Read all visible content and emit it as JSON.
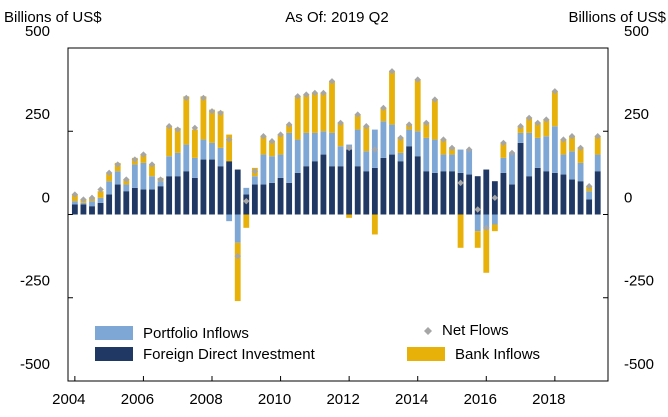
{
  "chart_data": {
    "type": "stacked-bar",
    "title": "As Of: 2019 Q2",
    "y_label": "Billions of US$",
    "y2_label": "Billions of US$",
    "x": [
      2004,
      2004.25,
      2004.5,
      2004.75,
      2005,
      2005.25,
      2005.5,
      2005.75,
      2006,
      2006.25,
      2006.5,
      2006.75,
      2007,
      2007.25,
      2007.5,
      2007.75,
      2008,
      2008.25,
      2008.5,
      2008.75,
      2009,
      2009.25,
      2009.5,
      2009.75,
      2010,
      2010.25,
      2010.5,
      2010.75,
      2011,
      2011.25,
      2011.5,
      2011.75,
      2012,
      2012.25,
      2012.5,
      2012.75,
      2013,
      2013.25,
      2013.5,
      2013.75,
      2014,
      2014.25,
      2014.5,
      2014.75,
      2015,
      2015.25,
      2015.5,
      2015.75,
      2016,
      2016.25,
      2016.5,
      2016.75,
      2017,
      2017.25,
      2017.5,
      2017.75,
      2018,
      2018.25,
      2018.5,
      2018.75,
      2019,
      2019.25
    ],
    "series": [
      {
        "name": "Foreign Direct Investment",
        "color": "#1f3864",
        "values": [
          30,
          30,
          25,
          35,
          60,
          90,
          70,
          80,
          75,
          75,
          85,
          115,
          115,
          130,
          110,
          165,
          165,
          145,
          160,
          135,
          60,
          90,
          90,
          95,
          110,
          95,
          125,
          145,
          160,
          180,
          145,
          145,
          195,
          145,
          130,
          140,
          170,
          180,
          160,
          205,
          175,
          130,
          125,
          130,
          130,
          125,
          120,
          115,
          135,
          100,
          125,
          90,
          215,
          115,
          140,
          130,
          125,
          120,
          105,
          100,
          45,
          130
        ]
      },
      {
        "name": "Portfolio Inflows",
        "color": "#7fa7d6",
        "values": [
          10,
          5,
          15,
          15,
          40,
          40,
          20,
          70,
          80,
          40,
          15,
          60,
          70,
          80,
          60,
          60,
          50,
          55,
          -20,
          -85,
          20,
          25,
          90,
          80,
          70,
          150,
          100,
          100,
          85,
          70,
          100,
          60,
          15,
          110,
          60,
          115,
          110,
          90,
          25,
          50,
          75,
          100,
          100,
          50,
          50,
          70,
          75,
          -50,
          -45,
          -30,
          45,
          95,
          30,
          130,
          90,
          105,
          140,
          60,
          85,
          55,
          25,
          50
        ]
      },
      {
        "name": "Bank Inflows",
        "color": "#e8b10a",
        "values": [
          20,
          10,
          10,
          20,
          25,
          25,
          15,
          20,
          25,
          35,
          10,
          90,
          75,
          145,
          85,
          130,
          100,
          110,
          80,
          -175,
          -40,
          25,
          55,
          45,
          60,
          25,
          130,
          115,
          120,
          115,
          155,
          70,
          -10,
          45,
          75,
          -60,
          40,
          160,
          45,
          15,
          155,
          45,
          120,
          45,
          20,
          -100,
          0,
          -50,
          -130,
          -20,
          45,
          0,
          20,
          45,
          45,
          50,
          105,
          45,
          45,
          45,
          15,
          55
        ]
      },
      {
        "name": "Net Flows",
        "color": "#a6a6a6",
        "marker": "diamond",
        "values": [
          60,
          45,
          50,
          75,
          125,
          150,
          105,
          165,
          180,
          150,
          105,
          265,
          255,
          350,
          260,
          350,
          310,
          305,
          225,
          -125,
          40,
          130,
          235,
          220,
          240,
          270,
          355,
          360,
          365,
          365,
          400,
          275,
          200,
          300,
          265,
          195,
          320,
          430,
          230,
          270,
          405,
          275,
          345,
          225,
          200,
          95,
          195,
          15,
          -40,
          50,
          215,
          185,
          265,
          290,
          275,
          285,
          370,
          225,
          235,
          200,
          85,
          235
        ]
      }
    ],
    "xlim": [
      2003.8,
      2019.55
    ],
    "xticks": [
      2004,
      2006,
      2008,
      2010,
      2012,
      2014,
      2016,
      2018
    ],
    "ylim": [
      -500,
      500
    ],
    "yticks": [
      -500,
      -250,
      0,
      250,
      500
    ],
    "y2lim": [
      -500,
      500
    ],
    "y2ticks": [
      -500,
      -250,
      0,
      250,
      500
    ]
  }
}
